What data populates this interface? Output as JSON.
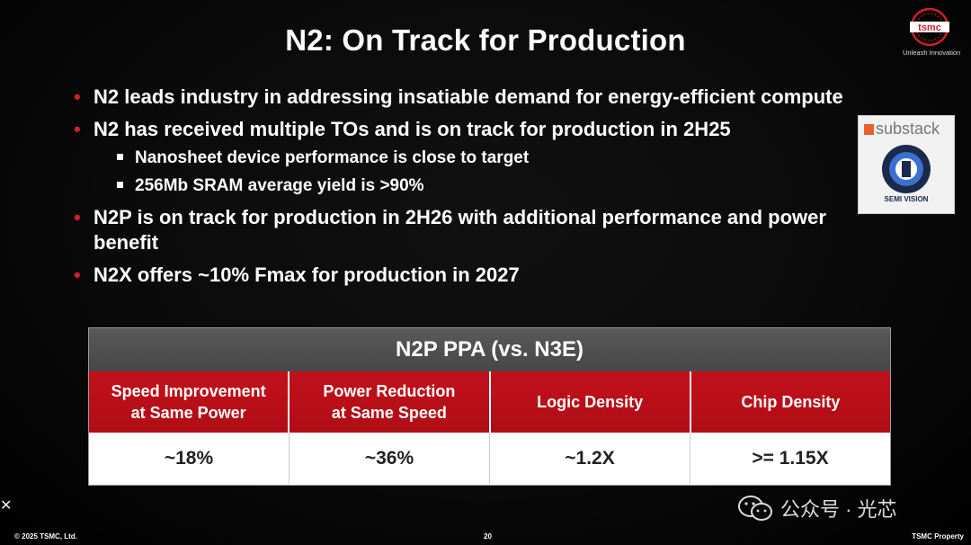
{
  "slide": {
    "title": "N2: On Track for Production",
    "logo": {
      "wordmark": "tsmc",
      "tagline": "Unleash Innovation"
    },
    "bullets": [
      {
        "text": "N2 leads industry in addressing insatiable demand for energy-efficient compute"
      },
      {
        "text": "N2 has received multiple TOs and is on track for production in 2H25"
      }
    ],
    "sub_bullets": [
      "Nanosheet device performance is close to target",
      "256Mb SRAM average yield is >90%"
    ],
    "bullets_after": [
      {
        "text": "N2P is on track for production in 2H26 with additional performance and power benefit"
      },
      {
        "text": "N2X offers ~10% Fmax for production in 2027"
      }
    ],
    "badge": {
      "brand": "substack",
      "name": "SEMI VISION"
    },
    "table": {
      "title": "N2P PPA (vs. N3E)",
      "headers": [
        "Speed Improvement\nat Same Power",
        "Power Reduction\nat Same Speed",
        "Logic Density",
        "Chip Density"
      ],
      "values": [
        "~18%",
        "~36%",
        "~1.2X",
        ">= 1.15X"
      ]
    },
    "watermark": "公众号 · 光芯",
    "footer": {
      "copyright": "© 2025 TSMC, Ltd.",
      "page": "20",
      "property": "TSMC Property"
    },
    "colors": {
      "accent": "#c2111b",
      "header": "#4f4f4f",
      "background": "#0a0a0a"
    }
  }
}
